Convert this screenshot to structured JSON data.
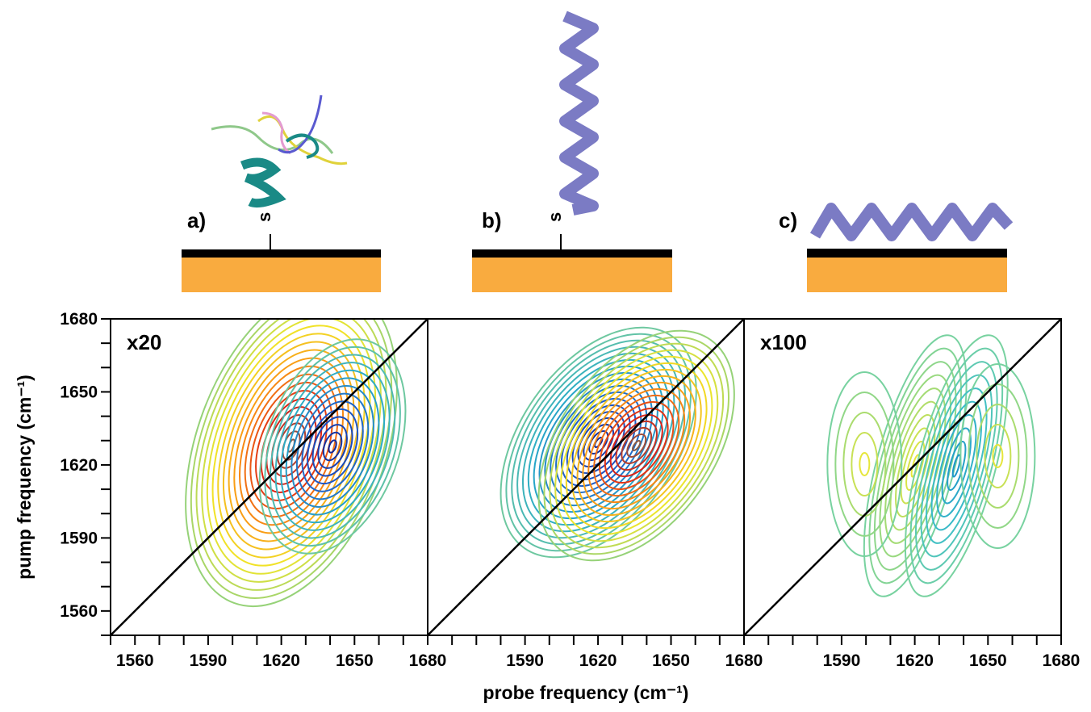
{
  "chart_data": [
    {
      "type": "contour",
      "panel_label": "a)",
      "linker": "s",
      "annotation": "x20",
      "xlim": [
        1550,
        1680
      ],
      "ylim": [
        1550,
        1680
      ],
      "xticks": [
        1560,
        1590,
        1620,
        1650,
        1680
      ],
      "yticks": [
        1560,
        1590,
        1620,
        1650,
        1680
      ],
      "minor_xticks": [
        1550,
        1570,
        1580,
        1600,
        1610,
        1630,
        1640,
        1660,
        1670
      ],
      "minor_yticks": [
        1550,
        1570,
        1580,
        1600,
        1610,
        1630,
        1640,
        1660,
        1670
      ],
      "ylabel": "pump frequency (cm⁻¹)"
    },
    {
      "type": "contour",
      "panel_label": "b)",
      "linker": "s",
      "xlim": [
        1550,
        1680
      ],
      "ylim": [
        1550,
        1680
      ],
      "xticks": [
        1590,
        1620,
        1650,
        1680
      ],
      "minor_xticks": [
        1560,
        1570,
        1580,
        1600,
        1610,
        1630,
        1640,
        1660,
        1670
      ],
      "xlabel": "probe frequency (cm⁻¹)"
    },
    {
      "type": "contour",
      "panel_label": "c)",
      "annotation": "x100",
      "xlim": [
        1550,
        1680
      ],
      "ylim": [
        1550,
        1680
      ],
      "xticks": [
        1590,
        1620,
        1650,
        1680
      ],
      "minor_xticks": [
        1560,
        1570,
        1580,
        1600,
        1610,
        1630,
        1640,
        1660,
        1670
      ]
    }
  ]
}
